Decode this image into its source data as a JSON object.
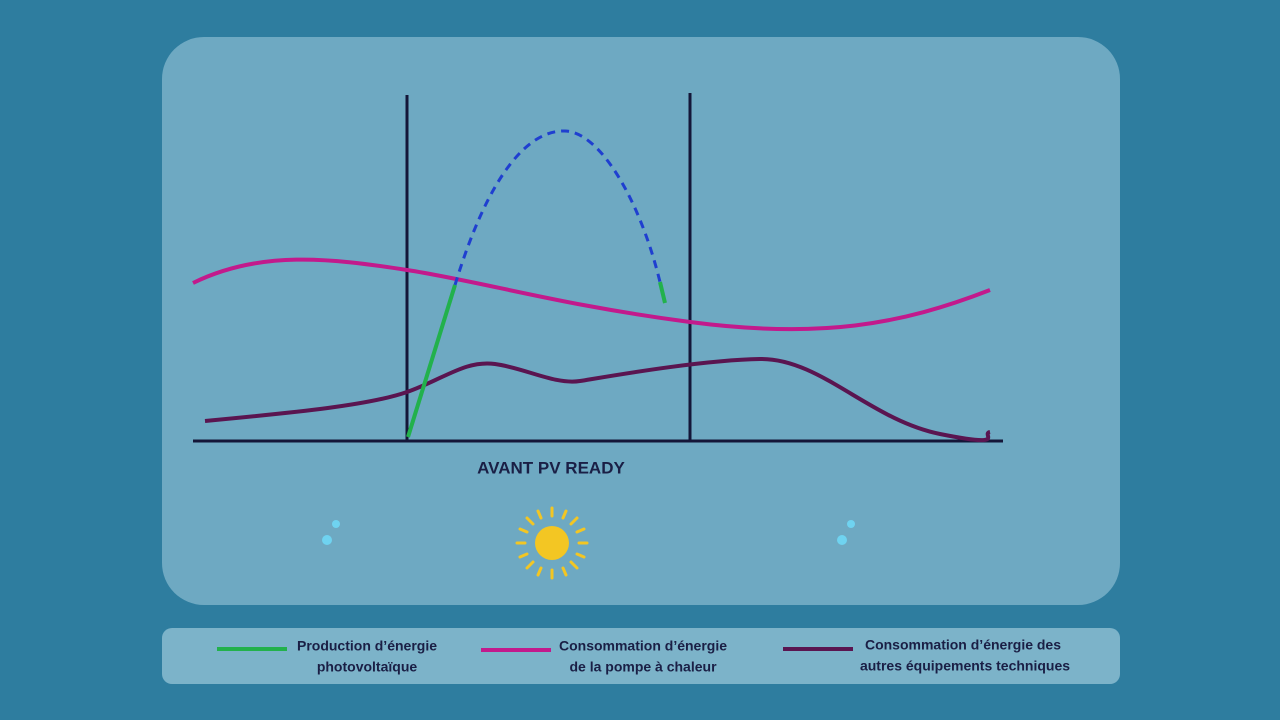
{
  "diagram": {
    "caption": "AVANT PV READY"
  },
  "legend": [
    {
      "lines": [
        "Production d’énergie",
        "photovoltaïque"
      ]
    },
    {
      "lines": [
        "Consommation d’énergie",
        "de la pompe à chaleur"
      ]
    },
    {
      "lines": [
        "Consommation d’énergie des",
        "autres équipements techniques"
      ]
    }
  ]
}
